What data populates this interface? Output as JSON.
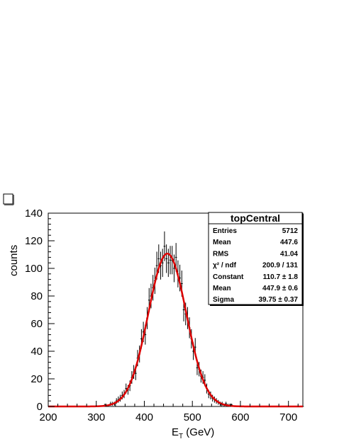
{
  "chart_data": {
    "type": "histogram",
    "xlabel": "E",
    "xlabel_sub": "T",
    "xlabel_unit": " (GeV)",
    "ylabel": "counts",
    "xlim": [
      200,
      730
    ],
    "ylim": [
      0,
      140
    ],
    "x_ticks": [
      200,
      300,
      400,
      500,
      600,
      700
    ],
    "y_ticks": [
      0,
      20,
      40,
      60,
      80,
      100,
      120,
      140
    ],
    "grid": false,
    "bin_width": 4,
    "fit": {
      "type": "gaussian",
      "constant": 110.7,
      "mean": 447.9,
      "sigma": 39.75,
      "color": "#dd0000"
    },
    "hist_color": "#000000",
    "stats_box": {
      "title": "topCentral",
      "position": "top-right",
      "rows": [
        {
          "label": "Entries",
          "value": "5712"
        },
        {
          "label": "Mean",
          "value": "447.6"
        },
        {
          "label": "RMS",
          "value": "41.04"
        },
        {
          "label": "χ² / ndf",
          "value": "200.9 / 131"
        },
        {
          "label": "Constant",
          "value": "110.7 ± 1.8"
        },
        {
          "label": "Mean",
          "value": "447.9 ± 0.6"
        },
        {
          "label": "Sigma",
          "value": "39.75 ± 0.37"
        }
      ]
    }
  }
}
